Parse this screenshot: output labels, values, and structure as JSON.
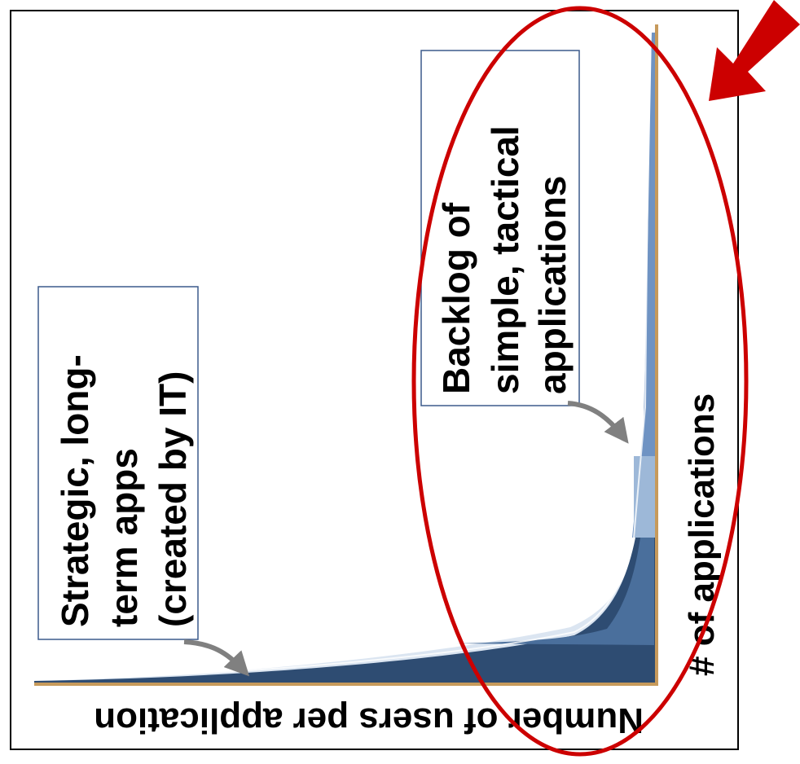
{
  "diagram": {
    "type": "long-tail distribution",
    "rotated_90_clockwise": true,
    "x_axis_label": "Number of users per application",
    "y_axis_label": "# of applications",
    "callouts": [
      {
        "id": "strategic",
        "lines": [
          "Strategic, long-",
          "term apps",
          "(created by IT)"
        ]
      },
      {
        "id": "backlog",
        "lines": [
          "Backlog of",
          "simple, tactical",
          "applications"
        ]
      }
    ],
    "highlight": {
      "shape": "ellipse",
      "target": "long tail region",
      "color": "#cc0000"
    },
    "pointer_arrow_color": "#cc0000",
    "colors": {
      "frame": "#000000",
      "curve_dark": "#2e4c72",
      "curve_mid": "#4a6f9c",
      "curve_light": "#9db8d8",
      "axis_line": "#c79a5b",
      "callout_border": "#3c5a8c",
      "callout_arrow": "#808080"
    }
  }
}
